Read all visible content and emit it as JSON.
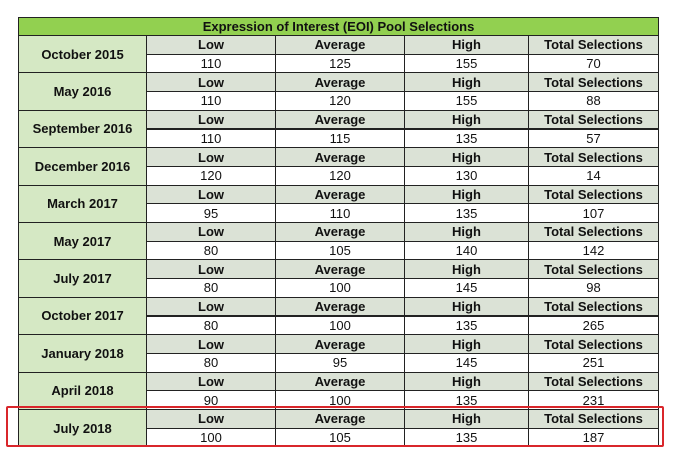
{
  "table": {
    "title": "Expression of Interest (EOI) Pool Selections",
    "columns": [
      "Low",
      "Average",
      "High",
      "Total Selections"
    ],
    "groups": [
      {
        "label": "October 2015",
        "values": [
          110,
          125,
          155,
          70
        ]
      },
      {
        "label": "May 2016",
        "values": [
          110,
          120,
          155,
          88
        ]
      },
      {
        "label": "September 2016",
        "values": [
          110,
          115,
          135,
          57
        ]
      },
      {
        "label": "December 2016",
        "values": [
          120,
          120,
          130,
          14
        ]
      },
      {
        "label": "March 2017",
        "values": [
          95,
          110,
          135,
          107
        ]
      },
      {
        "label": "May 2017",
        "values": [
          80,
          105,
          140,
          142
        ]
      },
      {
        "label": "July 2017",
        "values": [
          80,
          100,
          145,
          98
        ]
      },
      {
        "label": "October 2017",
        "values": [
          80,
          100,
          135,
          265
        ]
      },
      {
        "label": "January 2018",
        "values": [
          80,
          95,
          145,
          251
        ]
      },
      {
        "label": "April 2018",
        "values": [
          90,
          100,
          135,
          231
        ]
      },
      {
        "label": "July 2018",
        "values": [
          100,
          105,
          135,
          187
        ]
      }
    ]
  }
}
